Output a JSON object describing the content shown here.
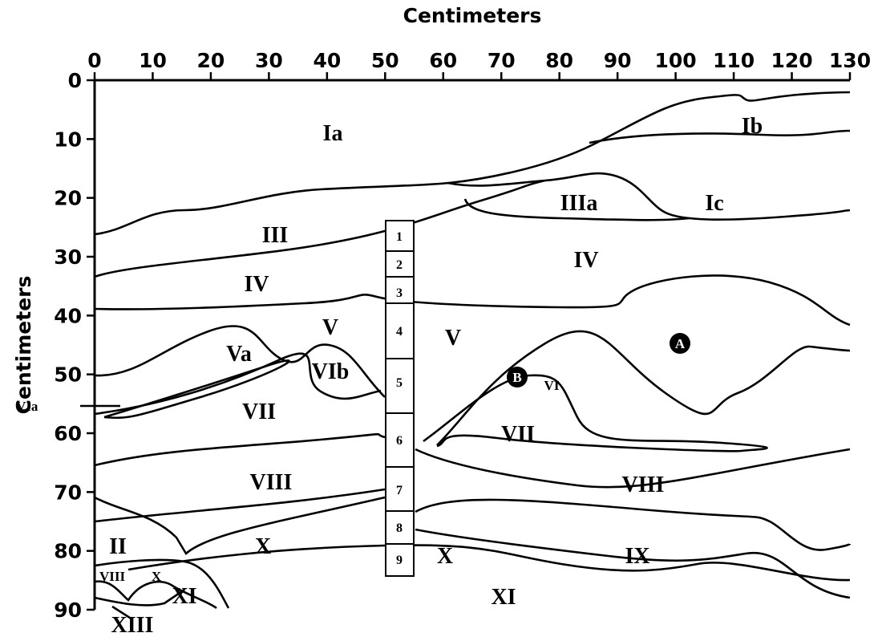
{
  "x_axis": {
    "title": "Centimeters",
    "ticks": [
      0,
      10,
      20,
      30,
      40,
      50,
      60,
      70,
      80,
      90,
      100,
      110,
      120,
      130
    ],
    "lim": [
      0,
      130
    ]
  },
  "y_axis": {
    "title": "Centimeters",
    "ticks": [
      0,
      10,
      20,
      30,
      40,
      50,
      60,
      70,
      80,
      90
    ],
    "lim": [
      0,
      90
    ]
  },
  "layers": [
    "Ia",
    "Ib",
    "IIIa",
    "Ic",
    "III",
    "IV",
    "IV",
    "V",
    "V",
    "Va",
    "VIb",
    "VI",
    "VIa",
    "VII",
    "VII",
    "VIII",
    "VIII",
    "X",
    "X",
    "IX",
    "II",
    "XI",
    "VIII",
    "X",
    "XI",
    "XIII"
  ],
  "markers": [
    "A",
    "B"
  ],
  "samples": [
    "1",
    "2",
    "3",
    "4",
    "5",
    "6",
    "7",
    "8",
    "9"
  ]
}
